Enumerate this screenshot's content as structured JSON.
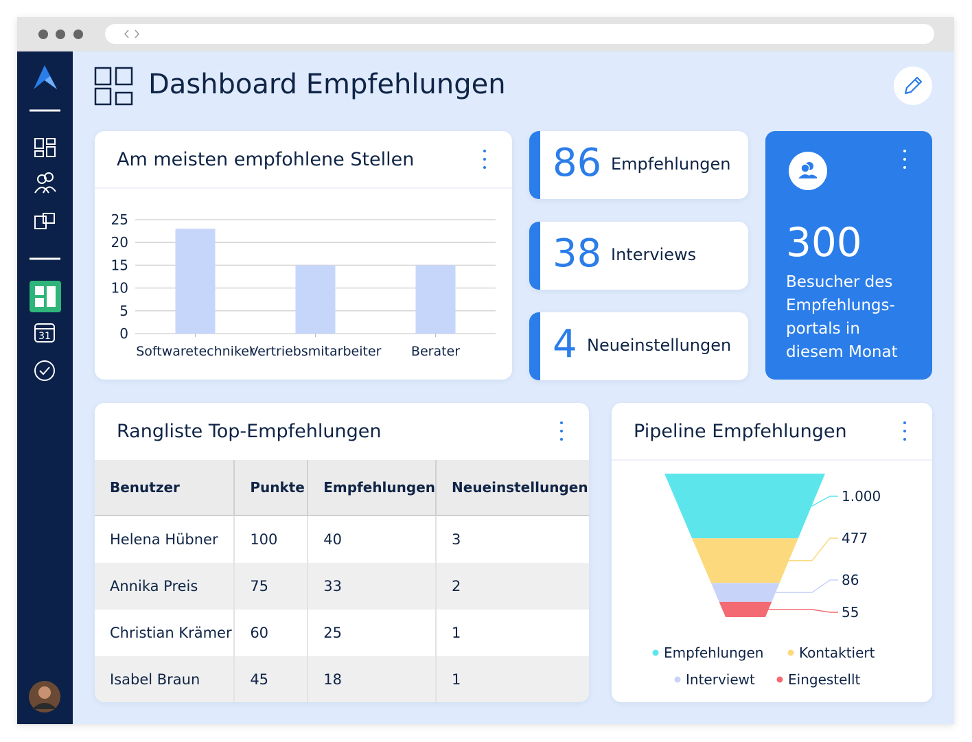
{
  "header": {
    "title": "Dashboard Empfehlungen"
  },
  "bar_chart": {
    "type": "bar",
    "title": "Am meisten empfohlene Stellen",
    "categories": [
      "Softwaretechniker",
      "Vertriebsmitarbeiter",
      "Berater"
    ],
    "values": [
      23,
      15,
      15
    ],
    "color": "#c6d6fb",
    "ylim": [
      0,
      25
    ],
    "yticks": [
      0,
      5,
      10,
      15,
      20,
      25
    ],
    "grid": true
  },
  "stats": [
    {
      "value": 86,
      "label": "Empfehlungen"
    },
    {
      "value": 38,
      "label": "Interviews"
    },
    {
      "value": 4,
      "label": "Neueinstellungen"
    }
  ],
  "visitors": {
    "value": 300,
    "label_lines": [
      "Besucher des",
      "Empfehlungs-",
      "portals in",
      "diesem Monat"
    ]
  },
  "table": {
    "title": "Rangliste Top-Empfehlungen",
    "columns": [
      "Benutzer",
      "Punkte",
      "Empfehlungen",
      "Neueinstellungen"
    ],
    "rows": [
      [
        "Helena Hübner",
        100,
        40,
        3
      ],
      [
        "Annika Preis",
        75,
        33,
        2
      ],
      [
        "Christian Krämer",
        60,
        25,
        1
      ],
      [
        "Isabel Braun",
        45,
        18,
        1
      ]
    ]
  },
  "funnel": {
    "type": "funnel",
    "title": "Pipeline Empfehlungen",
    "categories": [
      "Empfehlungen",
      "Kontaktiert",
      "Interviewt",
      "Eingestellt"
    ],
    "values": [
      1000,
      477,
      86,
      55
    ],
    "value_labels": [
      "1.000",
      "477",
      "86",
      "55"
    ],
    "colors": [
      "#5ce6ec",
      "#fdd97e",
      "#c8d3fa",
      "#f46a73"
    ]
  }
}
